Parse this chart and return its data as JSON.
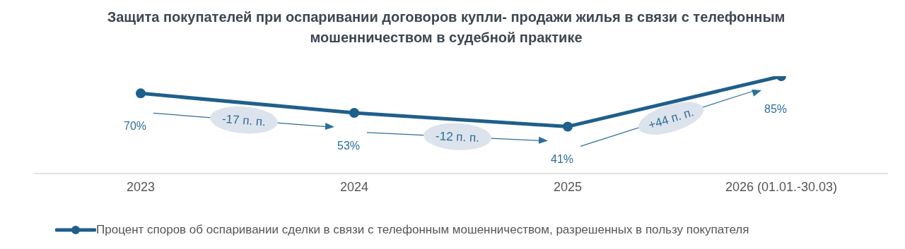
{
  "chart_data": {
    "type": "line",
    "title": "Защита покупателей при оспаривании договоров купли- продажи жилья в связи с телефонным мошенничеством в судебной практике",
    "categories": [
      "2023",
      "2024",
      "2025",
      "2026 (01.01.-30.03)"
    ],
    "series": [
      {
        "name": "Процент споров об оспаривании сделки в связи с телефонным мошенничеством, разрешенных в пользу покупателя",
        "color": "#1f5f8b",
        "values": [
          70,
          53,
          41,
          85
        ],
        "value_labels": [
          "70%",
          "53%",
          "41%",
          "85%"
        ]
      }
    ],
    "annotations": [
      "-17 п. п.",
      "-12 п. п.",
      "+44 п. п."
    ],
    "legend": "bottom",
    "marker": "circle",
    "tick_labels": "x"
  }
}
